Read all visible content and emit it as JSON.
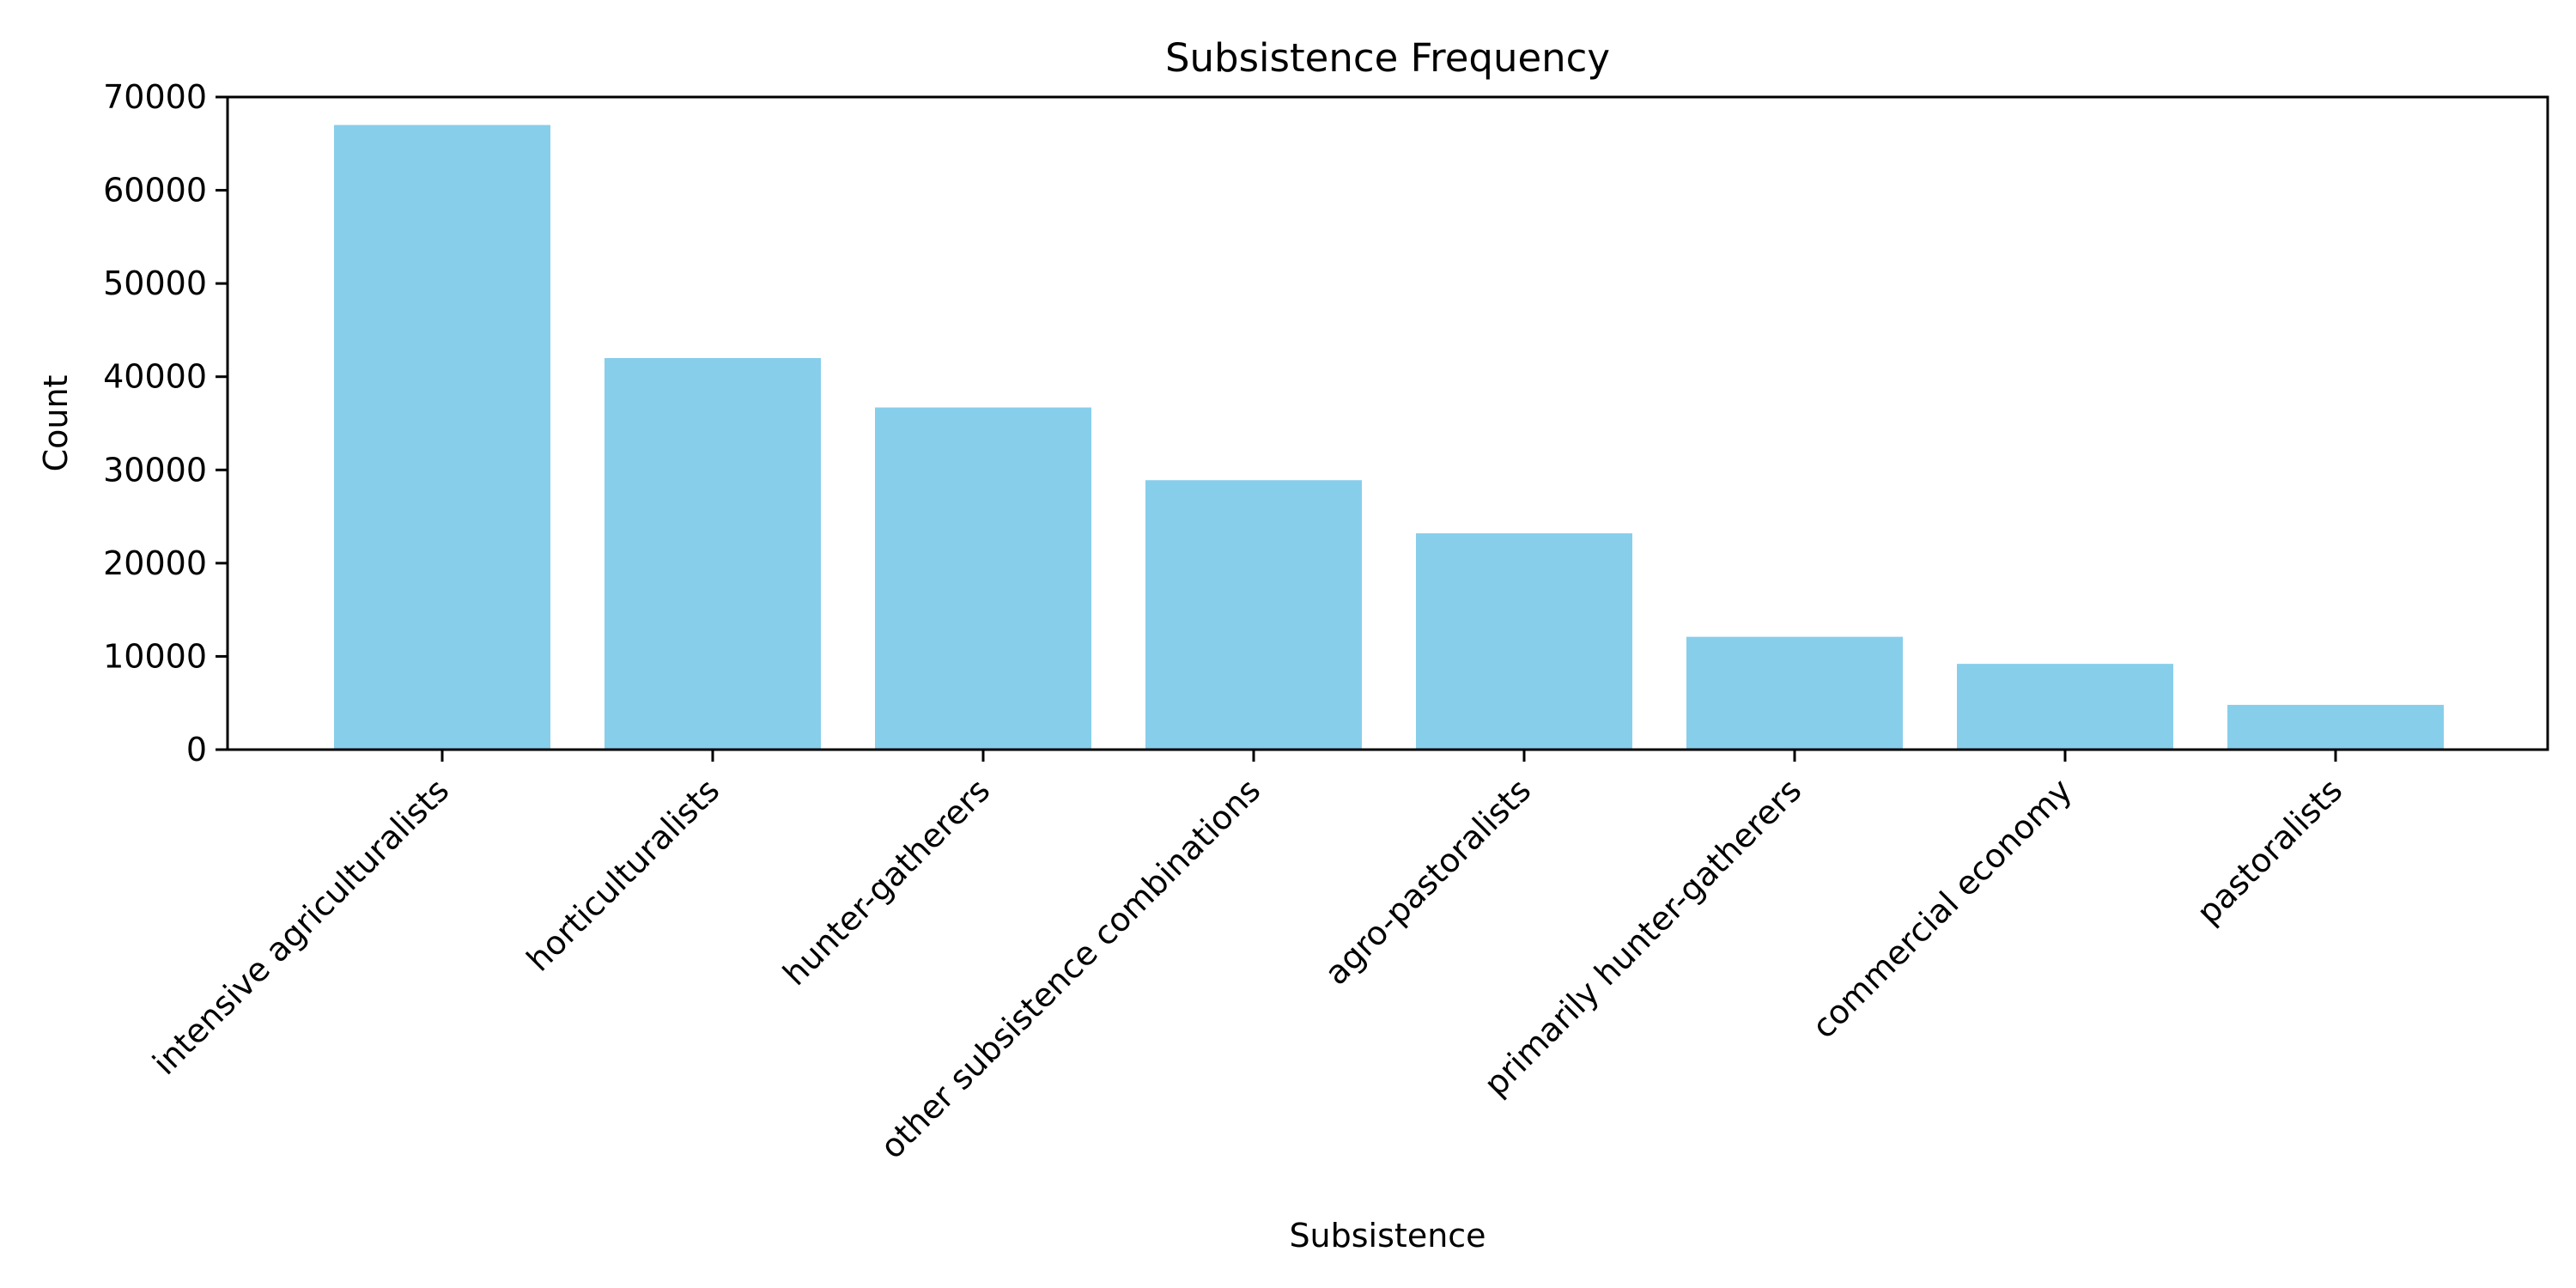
{
  "chart_data": {
    "type": "bar",
    "title": "Subsistence Frequency",
    "xlabel": "Subsistence",
    "ylabel": "Count",
    "categories": [
      "intensive agriculturalists",
      "horticulturalists",
      "hunter-gatherers",
      "other subsistence combinations",
      "agro-pastoralists",
      "primarily hunter-gatherers",
      "commercial economy",
      "pastoralists"
    ],
    "values": [
      67000,
      42000,
      36700,
      28900,
      23200,
      12100,
      9200,
      4800
    ],
    "ylim": [
      0,
      70000
    ],
    "yticks": [
      0,
      10000,
      20000,
      30000,
      40000,
      50000,
      60000,
      70000
    ],
    "bar_color": "#87CEEB",
    "grid": false,
    "legend": "none"
  }
}
